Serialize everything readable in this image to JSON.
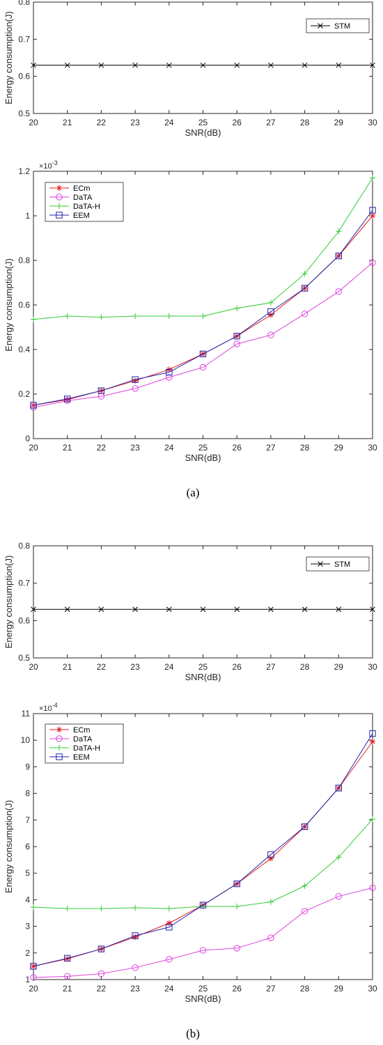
{
  "captions": [
    "(a)",
    "(b)"
  ],
  "chart_data": [
    {
      "type": "line",
      "xlabel": "SNR(dB)",
      "ylabel": "Energy consumption(J)",
      "x": [
        20,
        21,
        22,
        23,
        24,
        25,
        26,
        27,
        28,
        29,
        30
      ],
      "xlim": [
        20,
        30
      ],
      "ylim": [
        0.5,
        0.8
      ],
      "yticks": [
        "0.5",
        "0.6",
        "0.7",
        "0.8"
      ],
      "legend_position": "top-right",
      "series": [
        {
          "name": "STM",
          "color": "#000000",
          "marker": "x",
          "values": [
            0.63,
            0.63,
            0.63,
            0.63,
            0.63,
            0.63,
            0.63,
            0.63,
            0.63,
            0.63,
            0.63
          ]
        }
      ]
    },
    {
      "type": "line",
      "xlabel": "SNR(dB)",
      "ylabel": "Energy consumption(J)",
      "exponent": "×10",
      "exponent_power": "-3",
      "x": [
        20,
        21,
        22,
        23,
        24,
        25,
        26,
        27,
        28,
        29,
        30
      ],
      "xlim": [
        20,
        30
      ],
      "ylim": [
        0,
        1.2
      ],
      "yticks": [
        "0",
        "0.2",
        "0.4",
        "0.6",
        "0.8",
        "1",
        "1.2"
      ],
      "legend_position": "top-left",
      "series": [
        {
          "name": "ECm",
          "color": "#e31a1c",
          "marker": "star",
          "values": [
            0.15,
            0.175,
            0.215,
            0.26,
            0.31,
            0.38,
            0.46,
            0.555,
            0.675,
            0.82,
            1.0
          ]
        },
        {
          "name": "DaTA",
          "color": "#e040e0",
          "marker": "circle",
          "values": [
            0.14,
            0.17,
            0.19,
            0.225,
            0.275,
            0.32,
            0.425,
            0.465,
            0.56,
            0.66,
            0.79
          ]
        },
        {
          "name": "DaTA-H",
          "color": "#33cc33",
          "marker": "plus",
          "values": [
            0.535,
            0.55,
            0.545,
            0.55,
            0.55,
            0.55,
            0.585,
            0.61,
            0.74,
            0.93,
            1.17
          ]
        },
        {
          "name": "EEM",
          "color": "#2222aa",
          "marker": "square",
          "values": [
            0.15,
            0.178,
            0.215,
            0.265,
            0.298,
            0.38,
            0.46,
            0.57,
            0.675,
            0.82,
            1.025
          ]
        }
      ]
    },
    {
      "type": "line",
      "xlabel": "SNR(dB)",
      "ylabel": "Energy consumption(J)",
      "x": [
        20,
        21,
        22,
        23,
        24,
        25,
        26,
        27,
        28,
        29,
        30
      ],
      "xlim": [
        20,
        30
      ],
      "ylim": [
        0.5,
        0.8
      ],
      "yticks": [
        "0.5",
        "0.6",
        "0.7",
        "0.8"
      ],
      "legend_position": "top-right",
      "series": [
        {
          "name": "STM",
          "color": "#000000",
          "marker": "x",
          "values": [
            0.63,
            0.63,
            0.63,
            0.63,
            0.63,
            0.63,
            0.63,
            0.63,
            0.63,
            0.63,
            0.63
          ]
        }
      ]
    },
    {
      "type": "line",
      "xlabel": "SNR(dB)",
      "ylabel": "Energy consumption(J)",
      "exponent": "×10",
      "exponent_power": "-4",
      "x": [
        20,
        21,
        22,
        23,
        24,
        25,
        26,
        27,
        28,
        29,
        30
      ],
      "xlim": [
        20,
        30
      ],
      "ylim": [
        1,
        11
      ],
      "yticks": [
        "1",
        "2",
        "3",
        "4",
        "5",
        "6",
        "7",
        "8",
        "9",
        "10",
        "11"
      ],
      "legend_position": "top-left",
      "series": [
        {
          "name": "ECm",
          "color": "#e31a1c",
          "marker": "star",
          "values": [
            1.5,
            1.78,
            2.15,
            2.6,
            3.12,
            3.8,
            4.6,
            5.55,
            6.75,
            8.2,
            9.95
          ]
        },
        {
          "name": "DaTA",
          "color": "#e040e0",
          "marker": "circle",
          "values": [
            1.08,
            1.12,
            1.22,
            1.45,
            1.76,
            2.1,
            2.18,
            2.57,
            3.57,
            4.13,
            4.45
          ]
        },
        {
          "name": "DaTA-H",
          "color": "#33cc33",
          "marker": "plus",
          "values": [
            3.72,
            3.67,
            3.67,
            3.7,
            3.67,
            3.75,
            3.75,
            3.92,
            4.52,
            5.6,
            7.03
          ]
        },
        {
          "name": "EEM",
          "color": "#2222aa",
          "marker": "square",
          "values": [
            1.5,
            1.8,
            2.15,
            2.65,
            2.97,
            3.8,
            4.6,
            5.7,
            6.75,
            8.2,
            10.25
          ]
        }
      ]
    }
  ]
}
